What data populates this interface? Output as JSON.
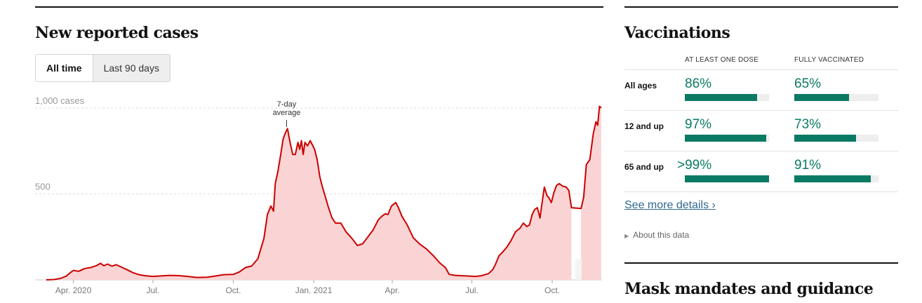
{
  "cases": {
    "heading": "New reported cases",
    "tabs": [
      {
        "label": "All time",
        "active": true
      },
      {
        "label": "Last 90 days",
        "active": false
      }
    ]
  },
  "chart_data": {
    "type": "area",
    "y_tick_labels": [
      "1,000 cases",
      "500"
    ],
    "y_ticks": [
      1000,
      500
    ],
    "ylim": [
      0,
      1050
    ],
    "x_tick_labels": [
      "Apr. 2020",
      "Jul.",
      "Oct.",
      "Jan. 2021",
      "Apr.",
      "Jul.",
      "Oct."
    ],
    "x_ticks": [
      "2020-04-01",
      "2020-07-01",
      "2020-10-01",
      "2021-01-01",
      "2021-04-01",
      "2021-07-01",
      "2021-10-01"
    ],
    "xlim": [
      "2020-03-01",
      "2021-11-27"
    ],
    "annotation": "7-day average",
    "annotation_date": "2020-12-01",
    "no_data_range": [
      "2021-10-24",
      "2021-11-02"
    ],
    "line_color": "#cc0000",
    "fill_color": "#fad4d4",
    "series": [
      {
        "points": [
          [
            "2020-03-01",
            0
          ],
          [
            "2020-03-10",
            2
          ],
          [
            "2020-03-17",
            8
          ],
          [
            "2020-03-24",
            22
          ],
          [
            "2020-03-28",
            40
          ],
          [
            "2020-04-01",
            55
          ],
          [
            "2020-04-07",
            50
          ],
          [
            "2020-04-14",
            66
          ],
          [
            "2020-04-21",
            72
          ],
          [
            "2020-04-28",
            84
          ],
          [
            "2020-05-02",
            96
          ],
          [
            "2020-05-06",
            82
          ],
          [
            "2020-05-10",
            92
          ],
          [
            "2020-05-15",
            80
          ],
          [
            "2020-05-20",
            88
          ],
          [
            "2020-05-26",
            74
          ],
          [
            "2020-06-01",
            60
          ],
          [
            "2020-06-08",
            42
          ],
          [
            "2020-06-15",
            30
          ],
          [
            "2020-06-22",
            24
          ],
          [
            "2020-07-01",
            20
          ],
          [
            "2020-07-10",
            23
          ],
          [
            "2020-07-20",
            26
          ],
          [
            "2020-08-01",
            24
          ],
          [
            "2020-08-10",
            20
          ],
          [
            "2020-08-20",
            14
          ],
          [
            "2020-09-01",
            15
          ],
          [
            "2020-09-10",
            22
          ],
          [
            "2020-09-20",
            30
          ],
          [
            "2020-10-01",
            32
          ],
          [
            "2020-10-08",
            46
          ],
          [
            "2020-10-15",
            72
          ],
          [
            "2020-10-22",
            80
          ],
          [
            "2020-10-29",
            122
          ],
          [
            "2020-11-05",
            240
          ],
          [
            "2020-11-09",
            380
          ],
          [
            "2020-11-13",
            430
          ],
          [
            "2020-11-16",
            400
          ],
          [
            "2020-11-18",
            560
          ],
          [
            "2020-11-21",
            630
          ],
          [
            "2020-11-24",
            720
          ],
          [
            "2020-11-27",
            820
          ],
          [
            "2020-11-30",
            860
          ],
          [
            "2020-12-02",
            880
          ],
          [
            "2020-12-05",
            800
          ],
          [
            "2020-12-08",
            730
          ],
          [
            "2020-12-11",
            730
          ],
          [
            "2020-12-14",
            800
          ],
          [
            "2020-12-16",
            760
          ],
          [
            "2020-12-18",
            810
          ],
          [
            "2020-12-20",
            730
          ],
          [
            "2020-12-22",
            800
          ],
          [
            "2020-12-25",
            780
          ],
          [
            "2020-12-28",
            810
          ],
          [
            "2021-01-02",
            760
          ],
          [
            "2021-01-05",
            700
          ],
          [
            "2021-01-08",
            600
          ],
          [
            "2021-01-11",
            540
          ],
          [
            "2021-01-14",
            490
          ],
          [
            "2021-01-18",
            420
          ],
          [
            "2021-01-22",
            360
          ],
          [
            "2021-01-26",
            330
          ],
          [
            "2021-02-01",
            330
          ],
          [
            "2021-02-07",
            280
          ],
          [
            "2021-02-14",
            240
          ],
          [
            "2021-02-20",
            200
          ],
          [
            "2021-02-26",
            210
          ],
          [
            "2021-03-04",
            250
          ],
          [
            "2021-03-10",
            290
          ],
          [
            "2021-03-16",
            350
          ],
          [
            "2021-03-20",
            370
          ],
          [
            "2021-03-24",
            385
          ],
          [
            "2021-03-27",
            380
          ],
          [
            "2021-03-31",
            430
          ],
          [
            "2021-04-05",
            450
          ],
          [
            "2021-04-08",
            420
          ],
          [
            "2021-04-12",
            370
          ],
          [
            "2021-04-18",
            320
          ],
          [
            "2021-04-25",
            245
          ],
          [
            "2021-05-02",
            210
          ],
          [
            "2021-05-10",
            180
          ],
          [
            "2021-05-18",
            140
          ],
          [
            "2021-05-25",
            100
          ],
          [
            "2021-06-01",
            70
          ],
          [
            "2021-06-05",
            32
          ],
          [
            "2021-06-12",
            26
          ],
          [
            "2021-06-20",
            24
          ],
          [
            "2021-06-28",
            22
          ],
          [
            "2021-07-05",
            20
          ],
          [
            "2021-07-12",
            24
          ],
          [
            "2021-07-20",
            36
          ],
          [
            "2021-07-25",
            60
          ],
          [
            "2021-07-28",
            90
          ],
          [
            "2021-08-01",
            140
          ],
          [
            "2021-08-05",
            160
          ],
          [
            "2021-08-10",
            190
          ],
          [
            "2021-08-15",
            230
          ],
          [
            "2021-08-20",
            280
          ],
          [
            "2021-08-25",
            300
          ],
          [
            "2021-08-29",
            330
          ],
          [
            "2021-09-02",
            310
          ],
          [
            "2021-09-05",
            320
          ],
          [
            "2021-09-08",
            380
          ],
          [
            "2021-09-11",
            410
          ],
          [
            "2021-09-14",
            420
          ],
          [
            "2021-09-17",
            360
          ],
          [
            "2021-09-20",
            470
          ],
          [
            "2021-09-22",
            540
          ],
          [
            "2021-09-25",
            490
          ],
          [
            "2021-09-27",
            480
          ],
          [
            "2021-09-30",
            450
          ],
          [
            "2021-10-03",
            510
          ],
          [
            "2021-10-06",
            550
          ],
          [
            "2021-10-09",
            560
          ],
          [
            "2021-10-13",
            545
          ],
          [
            "2021-10-17",
            540
          ],
          [
            "2021-10-20",
            520
          ],
          [
            "2021-10-23",
            420
          ],
          [
            "2021-11-03",
            415
          ],
          [
            "2021-11-06",
            480
          ],
          [
            "2021-11-09",
            670
          ],
          [
            "2021-11-13",
            700
          ],
          [
            "2021-11-17",
            850
          ],
          [
            "2021-11-20",
            920
          ],
          [
            "2021-11-22",
            900
          ],
          [
            "2021-11-24",
            1010
          ],
          [
            "2021-11-26",
            1000
          ]
        ]
      }
    ]
  },
  "vaccinations": {
    "heading": "Vaccinations",
    "col_headers": [
      "AT LEAST ONE DOSE",
      "FULLY VACCINATED"
    ],
    "rows": [
      {
        "label": "All ages",
        "one_dose": {
          "text": "86%",
          "value": 0.86
        },
        "fully": {
          "text": "65%",
          "value": 0.65
        }
      },
      {
        "label": "12 and up",
        "one_dose": {
          "text": "97%",
          "value": 0.97
        },
        "fully": {
          "text": "73%",
          "value": 0.73
        }
      },
      {
        "label": "65 and up",
        "one_dose": {
          "text": ">99%",
          "value": 1.0
        },
        "fully": {
          "text": "91%",
          "value": 0.91
        }
      }
    ],
    "bar_color": "#0a7a64",
    "link": "See more details ›",
    "about": "About this data"
  },
  "mask": {
    "heading": "Mask mandates and guidance"
  }
}
